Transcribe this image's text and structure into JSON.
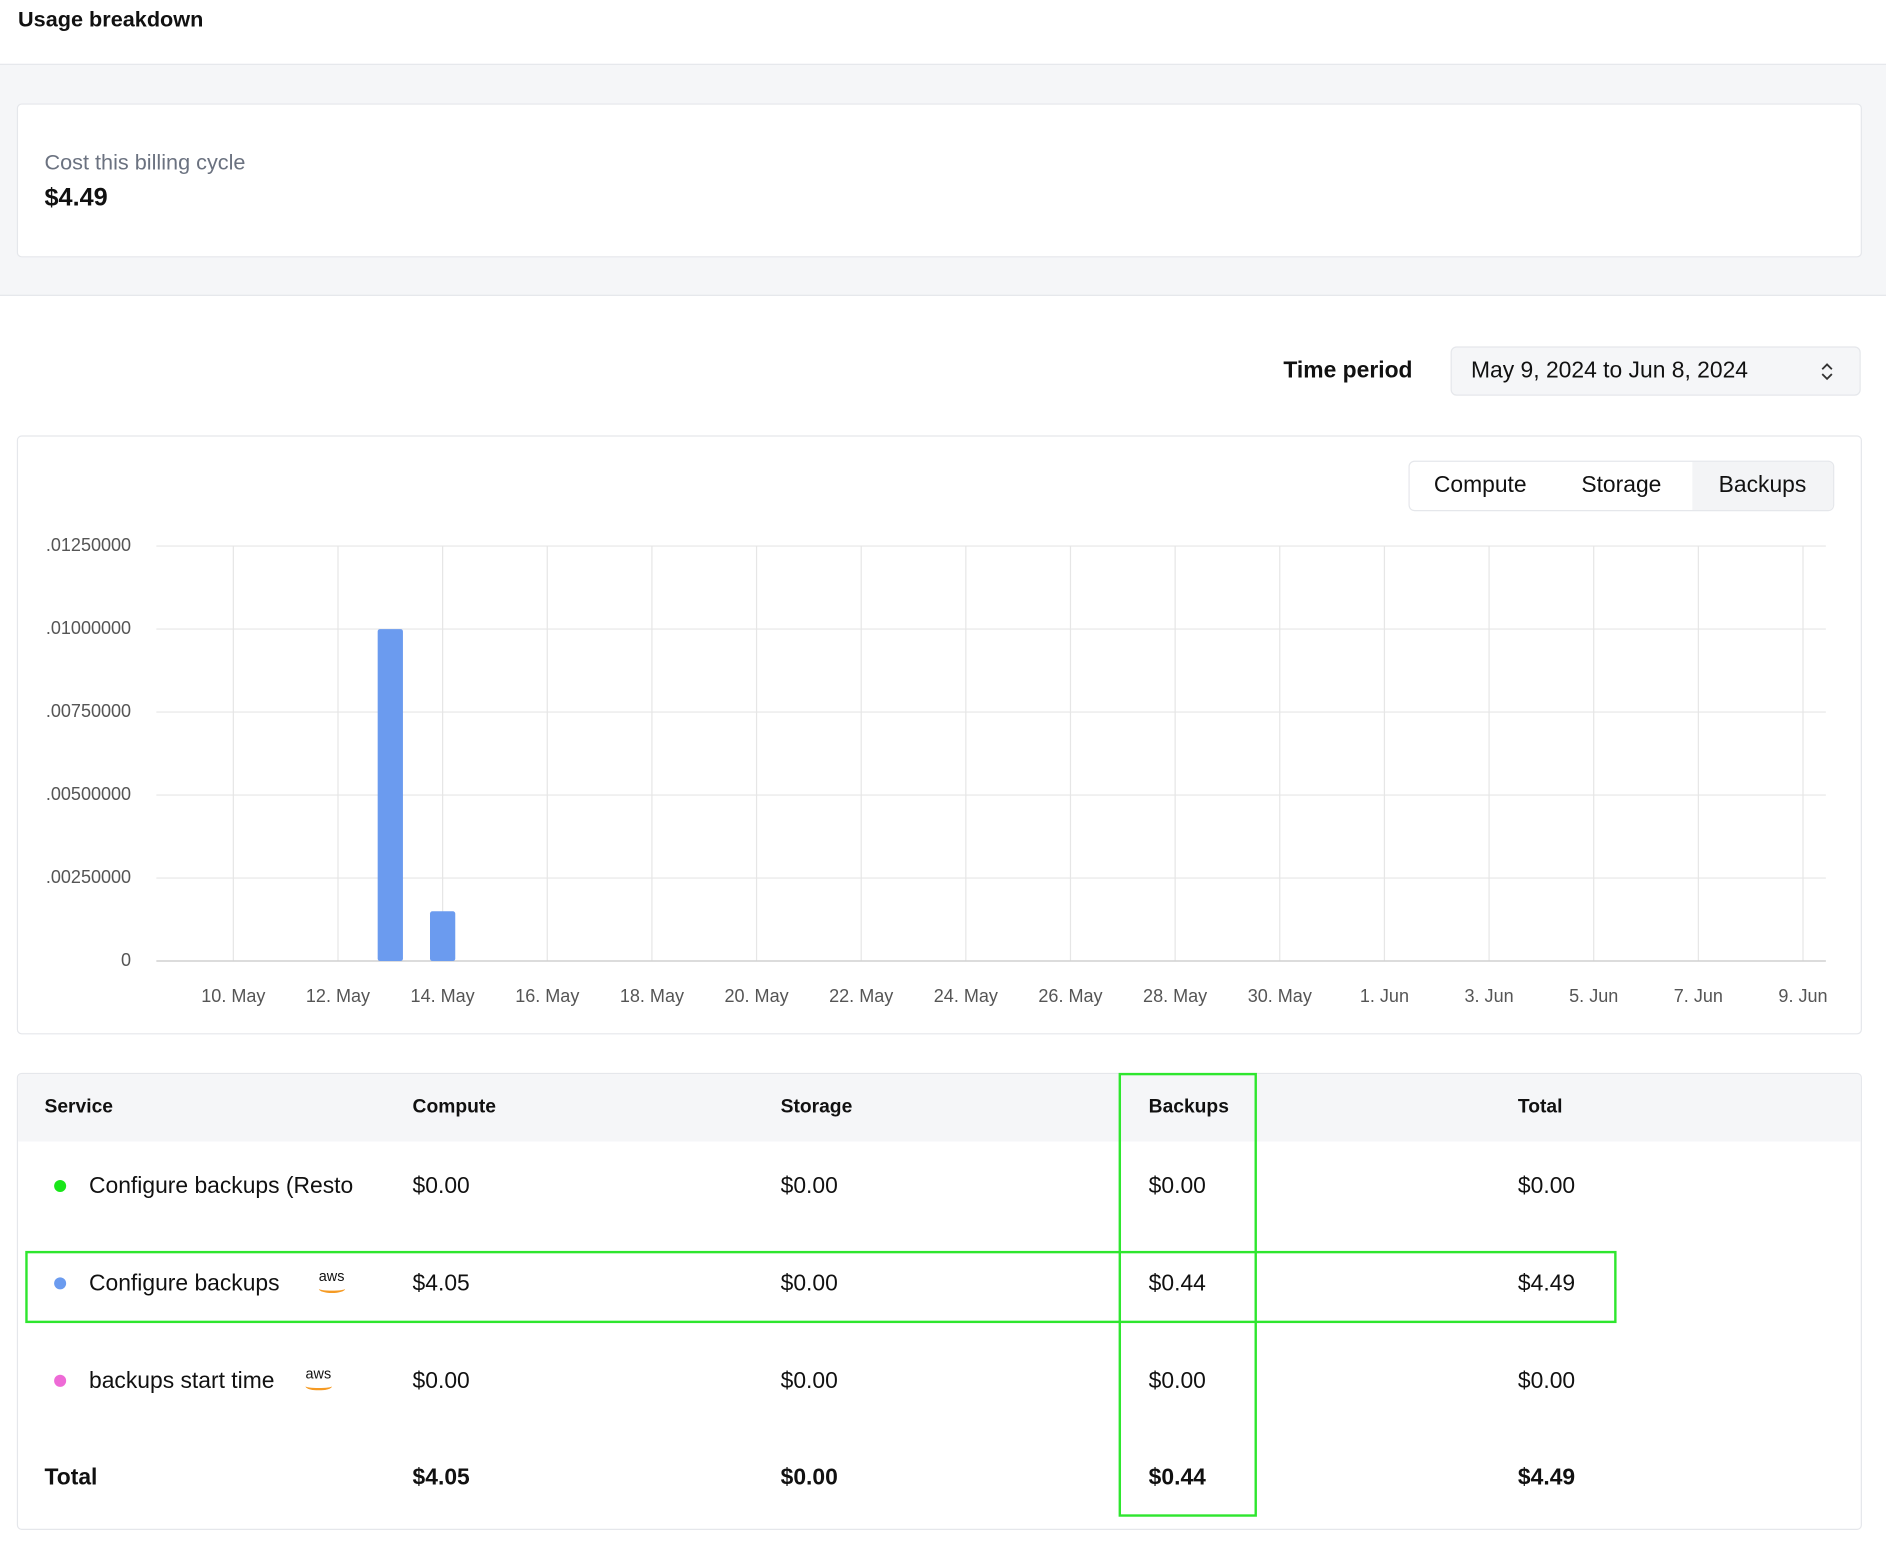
{
  "header": {
    "title": "Usage breakdown"
  },
  "summary": {
    "label": "Cost this billing cycle",
    "value": "$4.49"
  },
  "time_period": {
    "label": "Time period",
    "value": "May 9, 2024 to Jun 8, 2024"
  },
  "tabs": {
    "items": [
      "Compute",
      "Storage",
      "Backups"
    ],
    "selected": 2
  },
  "chart_data": {
    "type": "bar",
    "color": "#6b9bef",
    "grid": true,
    "categories": [
      null,
      "10. May",
      null,
      "12. May",
      null,
      "14. May",
      null,
      "16. May",
      null,
      "18. May",
      null,
      "20. May",
      null,
      "22. May",
      null,
      "24. May",
      null,
      "26. May",
      null,
      "28. May",
      null,
      "30. May",
      null,
      "1. Jun",
      null,
      "3. Jun",
      null,
      "5. Jun",
      null,
      "7. Jun",
      null,
      "9. Jun"
    ],
    "values": [
      0,
      0,
      0,
      0,
      0.01,
      0.0015,
      0,
      0,
      0,
      0,
      0,
      0,
      0,
      0,
      0,
      0,
      0,
      0,
      0,
      0,
      0,
      0,
      0,
      0,
      0,
      0,
      0,
      0,
      0,
      0,
      0,
      0
    ],
    "ylim": [
      0,
      0.0125
    ],
    "yticks": [
      0,
      {
        "value": 0.0025,
        "label": ".00250000"
      },
      {
        "value": 0.005,
        "label": ".00500000"
      },
      {
        "value": 0.0075,
        "label": ".00750000"
      },
      {
        "value": 0.01,
        "label": ".01000000"
      },
      {
        "value": 0.0125,
        "label": ".01250000"
      }
    ]
  },
  "table": {
    "columns": [
      "Service",
      "Compute",
      "Storage",
      "Backups",
      "Total"
    ],
    "rows": [
      {
        "service": "Configure backups (Resto",
        "color": "#19e619",
        "cells": [
          "$0.00",
          "$0.00",
          "$0.00",
          "$0.00"
        ]
      },
      {
        "service": "Configure backups",
        "color": "#6b9bef",
        "provider": "aws",
        "cells": [
          "$4.05",
          "$0.00",
          "$0.44",
          "$4.49"
        ]
      },
      {
        "service": "backups start time",
        "color": "#ee6ad6",
        "provider": "aws",
        "cells": [
          "$0.00",
          "$0.00",
          "$0.00",
          "$0.00"
        ]
      }
    ],
    "total": {
      "label": "Total",
      "cells": [
        "$4.05",
        "$0.00",
        "$0.44",
        "$4.49"
      ]
    }
  }
}
